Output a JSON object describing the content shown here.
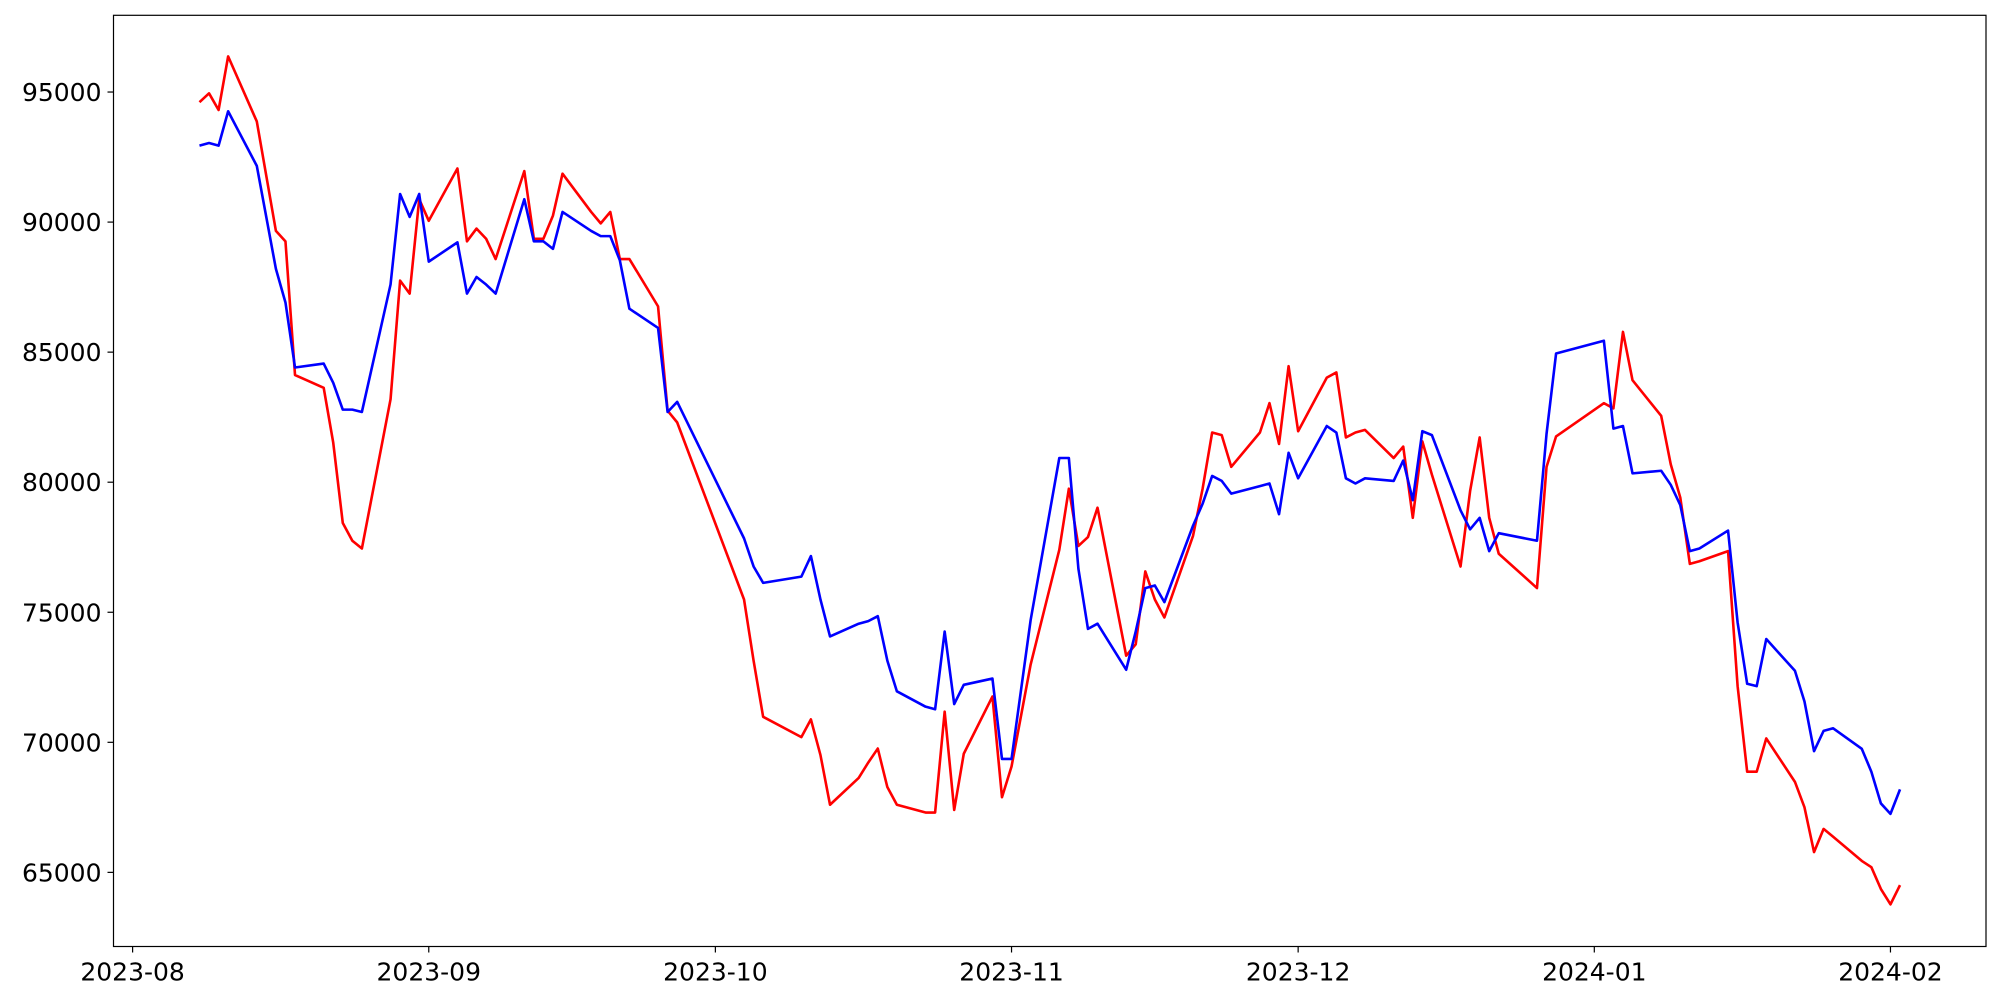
{
  "chart_data": {
    "type": "line",
    "x": [
      "2023-08-08",
      "2023-08-09",
      "2023-08-10",
      "2023-08-11",
      "2023-08-14",
      "2023-08-16",
      "2023-08-17",
      "2023-08-18",
      "2023-08-21",
      "2023-08-22",
      "2023-08-23",
      "2023-08-24",
      "2023-08-25",
      "2023-08-28",
      "2023-08-29",
      "2023-08-30",
      "2023-08-31",
      "2023-09-01",
      "2023-09-04",
      "2023-09-05",
      "2023-09-06",
      "2023-09-07",
      "2023-09-08",
      "2023-09-11",
      "2023-09-12",
      "2023-09-13",
      "2023-09-14",
      "2023-09-15",
      "2023-09-18",
      "2023-09-19",
      "2023-09-20",
      "2023-09-21",
      "2023-09-22",
      "2023-09-25",
      "2023-09-26",
      "2023-09-27",
      "2023-10-04",
      "2023-10-05",
      "2023-10-06",
      "2023-10-10",
      "2023-10-11",
      "2023-10-12",
      "2023-10-13",
      "2023-10-16",
      "2023-10-17",
      "2023-10-18",
      "2023-10-19",
      "2023-10-20",
      "2023-10-23",
      "2023-10-24",
      "2023-10-25",
      "2023-10-26",
      "2023-10-27",
      "2023-10-30",
      "2023-10-31",
      "2023-11-01",
      "2023-11-03",
      "2023-11-06",
      "2023-11-07",
      "2023-11-08",
      "2023-11-09",
      "2023-11-10",
      "2023-11-13",
      "2023-11-14",
      "2023-11-15",
      "2023-11-16",
      "2023-11-17",
      "2023-11-20",
      "2023-11-21",
      "2023-11-22",
      "2023-11-23",
      "2023-11-24",
      "2023-11-27",
      "2023-11-28",
      "2023-11-29",
      "2023-11-30",
      "2023-12-01",
      "2023-12-04",
      "2023-12-05",
      "2023-12-06",
      "2023-12-07",
      "2023-12-08",
      "2023-12-11",
      "2023-12-12",
      "2023-12-13",
      "2023-12-14",
      "2023-12-15",
      "2023-12-18",
      "2023-12-19",
      "2023-12-20",
      "2023-12-21",
      "2023-12-22",
      "2023-12-26",
      "2023-12-27",
      "2023-12-28",
      "2024-01-02",
      "2024-01-03",
      "2024-01-04",
      "2024-01-05",
      "2024-01-08",
      "2024-01-09",
      "2024-01-10",
      "2024-01-11",
      "2024-01-12",
      "2024-01-15",
      "2024-01-16",
      "2024-01-17",
      "2024-01-18",
      "2024-01-19",
      "2024-01-22",
      "2024-01-23",
      "2024-01-24",
      "2024-01-25",
      "2024-01-26",
      "2024-01-29",
      "2024-01-30",
      "2024-01-31",
      "2024-02-01",
      "2024-02-02"
    ],
    "series": [
      {
        "color": "#ff0000",
        "values": [
          94610,
          94950,
          94310,
          96370,
          93870,
          89660,
          89260,
          84120,
          83630,
          81520,
          78430,
          77750,
          77450,
          83190,
          87750,
          87250,
          90880,
          90050,
          92060,
          89260,
          89750,
          89360,
          88580,
          91960,
          89360,
          89360,
          90250,
          91860,
          90390,
          89950,
          90390,
          88580,
          88580,
          86760,
          82750,
          82300,
          75490,
          73140,
          70980,
          70200,
          70880,
          69510,
          67600,
          68630,
          69220,
          69760,
          68280,
          67600,
          67300,
          67300,
          71180,
          67400,
          69560,
          71760,
          67890,
          69070,
          72990,
          77400,
          79750,
          77550,
          77890,
          79020,
          73330,
          73770,
          76570,
          75490,
          74800,
          77940,
          79750,
          81910,
          81810,
          80590,
          81910,
          83040,
          81470,
          84460,
          81960,
          84020,
          84220,
          81720,
          81910,
          82010,
          80930,
          81370,
          78630,
          81570,
          80290,
          76760,
          79660,
          81720,
          78630,
          77250,
          75930,
          80590,
          81760,
          83040,
          82840,
          85780,
          83920,
          82550,
          80690,
          79410,
          76860,
          76960,
          77350,
          72160,
          68870,
          68870,
          70150,
          68480,
          67500,
          65780,
          66670,
          66370,
          65440,
          65200,
          64360,
          63770,
          64510
        ]
      },
      {
        "color": "#0000ff",
        "values": [
          92940,
          93040,
          92940,
          94260,
          92160,
          88200,
          86910,
          84410,
          84560,
          83820,
          82790,
          82790,
          82700,
          87600,
          91080,
          90200,
          91080,
          88480,
          89220,
          87250,
          87890,
          87600,
          87250,
          90880,
          89260,
          89260,
          88970,
          90390,
          89660,
          89460,
          89460,
          88530,
          86670,
          85930,
          82700,
          83090,
          77840,
          76760,
          76130,
          76370,
          77160,
          75490,
          74070,
          74560,
          74660,
          74850,
          73140,
          71960,
          71370,
          71270,
          74260,
          71470,
          72210,
          72450,
          69360,
          69360,
          74700,
          80930,
          80930,
          76670,
          74360,
          74560,
          72790,
          74260,
          75930,
          76030,
          75390,
          78330,
          79170,
          80240,
          80050,
          79560,
          79850,
          79950,
          78770,
          81130,
          80150,
          82160,
          81910,
          80150,
          79950,
          80150,
          80050,
          80830,
          79310,
          81960,
          81810,
          78920,
          78190,
          78630,
          77350,
          78040,
          77750,
          81860,
          84950,
          85440,
          82060,
          82160,
          80340,
          80440,
          79900,
          79120,
          77350,
          77450,
          78140,
          74610,
          72250,
          72160,
          73970,
          72750,
          71570,
          69660,
          70440,
          70540,
          69750,
          68870,
          67650,
          67250,
          68190
        ]
      }
    ],
    "xlim": [
      "2023-07-30",
      "2024-02-11"
    ],
    "xticks": [
      {
        "value": "2023-08-01",
        "label": "2023-08"
      },
      {
        "value": "2023-09-01",
        "label": "2023-09"
      },
      {
        "value": "2023-10-01",
        "label": "2023-10"
      },
      {
        "value": "2023-11-01",
        "label": "2023-11"
      },
      {
        "value": "2023-12-01",
        "label": "2023-12"
      },
      {
        "value": "2024-01-01",
        "label": "2024-01"
      },
      {
        "value": "2024-02-01",
        "label": "2024-02"
      }
    ],
    "ylim": [
      62150,
      97950
    ],
    "yticks": [
      65000,
      70000,
      75000,
      80000,
      85000,
      90000,
      95000
    ],
    "grid": false
  }
}
